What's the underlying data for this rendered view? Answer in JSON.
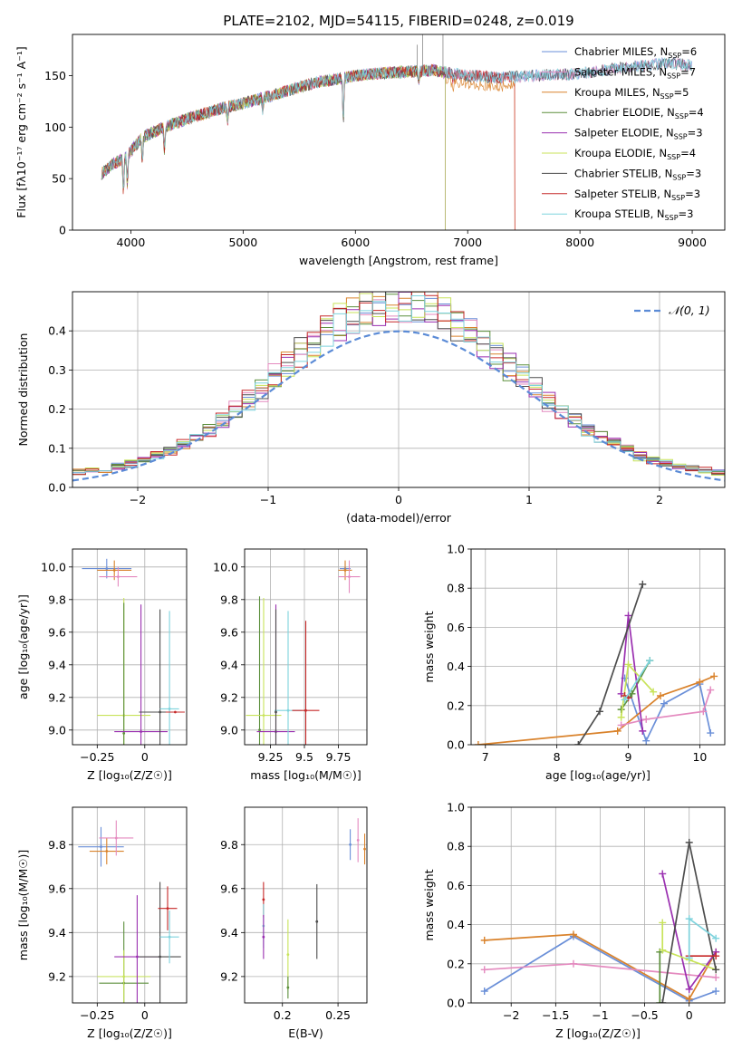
{
  "title": "PLATE=2102, MJD=54115, FIBERID=0248, z=0.019",
  "colors": {
    "Chabrier MILES": "#6a8fd8",
    "Salpeter MILES": "#e48abf",
    "Kroupa MILES": "#d9822b",
    "Chabrier ELODIE": "#5c8f3c",
    "Salpeter ELODIE": "#9a2fb0",
    "Kroupa ELODIE": "#c8e35a",
    "Chabrier STELIB": "#4d4d4d",
    "Salpeter STELIB": "#c62828",
    "Kroupa STELIB": "#7fd3dd",
    "gaussian": "#5b8bd6"
  },
  "chart_data": [
    {
      "id": "spectrum",
      "type": "line",
      "xlabel": "wavelength [Angstrom, rest frame]",
      "ylabel": "Flux [fλ10⁻¹⁷ erg cm⁻² s⁻¹ A⁻¹]",
      "xlim": [
        3480,
        9290
      ],
      "ylim": [
        0,
        190
      ],
      "xticks": [
        4000,
        5000,
        6000,
        7000,
        8000,
        9000
      ],
      "yticks": [
        0,
        50,
        100,
        150
      ],
      "legend_position": "top-right",
      "series": [
        {
          "name": "Chabrier MILES, N_SSP=6",
          "model": "Chabrier MILES"
        },
        {
          "name": "Salpeter MILES, N_SSP=7",
          "model": "Salpeter MILES"
        },
        {
          "name": "Kroupa MILES, N_SSP=5",
          "model": "Kroupa MILES"
        },
        {
          "name": "Chabrier ELODIE, N_SSP=4",
          "model": "Chabrier ELODIE"
        },
        {
          "name": "Salpeter ELODIE, N_SSP=3",
          "model": "Salpeter ELODIE"
        },
        {
          "name": "Kroupa ELODIE, N_SSP=4",
          "model": "Kroupa ELODIE"
        },
        {
          "name": "Chabrier STELIB, N_SSP=3",
          "model": "Chabrier STELIB"
        },
        {
          "name": "Salpeter STELIB, N_SSP=3",
          "model": "Salpeter STELIB"
        },
        {
          "name": "Kroupa STELIB, N_SSP=3",
          "model": "Kroupa STELIB"
        }
      ],
      "continuum": [
        [
          3740,
          55
        ],
        [
          3850,
          65
        ],
        [
          3950,
          70
        ],
        [
          4100,
          90
        ],
        [
          4300,
          100
        ],
        [
          4500,
          108
        ],
        [
          4800,
          118
        ],
        [
          5000,
          123
        ],
        [
          5300,
          132
        ],
        [
          5600,
          142
        ],
        [
          6000,
          150
        ],
        [
          6300,
          153
        ],
        [
          6700,
          155
        ],
        [
          7000,
          150
        ],
        [
          7300,
          148
        ],
        [
          7600,
          150
        ],
        [
          8000,
          152
        ],
        [
          8400,
          158
        ],
        [
          8800,
          162
        ],
        [
          9000,
          160
        ]
      ],
      "wavelength_range": [
        3740,
        9000
      ]
    },
    {
      "id": "residuals",
      "type": "line",
      "xlabel": "(data-model)/error",
      "ylabel": "Normed distribution",
      "xlim": [
        -2.5,
        2.5
      ],
      "ylim": [
        0,
        0.5
      ],
      "xticks": [
        -2,
        -1,
        0,
        1,
        2
      ],
      "yticks": [
        0.0,
        0.1,
        0.2,
        0.3,
        0.4
      ],
      "grid": true,
      "legend": "𝒩(0, 1)",
      "legend_position": "top-right",
      "gaussian": {
        "mean": 0,
        "sigma": 1
      }
    },
    {
      "id": "age-Z",
      "type": "scatter",
      "xlabel": "Z [log₁₀(Z/Z☉)]",
      "ylabel": "age  [log₁₀(age/yr)]",
      "xlim": [
        -0.38,
        0.22
      ],
      "ylim": [
        8.91,
        10.11
      ],
      "xticks": [
        -0.25,
        0.0
      ],
      "yticks": [
        9.0,
        9.2,
        9.4,
        9.6,
        9.8,
        10.0
      ],
      "grid": true,
      "points": [
        {
          "model": "Chabrier MILES",
          "x": -0.2,
          "y": 9.99,
          "xerr": 0.13,
          "yerr": 0.06
        },
        {
          "model": "Kroupa MILES",
          "x": -0.16,
          "y": 9.98,
          "xerr": 0.09,
          "yerr": 0.06
        },
        {
          "model": "Salpeter MILES",
          "x": -0.14,
          "y": 9.94,
          "xerr": 0.1,
          "yerr": 0.06
        },
        {
          "model": "Kroupa ELODIE",
          "x": -0.11,
          "y": 9.09,
          "xerr": 0.14,
          "yerr": 0.72
        },
        {
          "model": "Chabrier ELODIE",
          "x": -0.11,
          "y": 8.98,
          "xerr": 0.0,
          "yerr": 0.8
        },
        {
          "model": "Salpeter ELODIE",
          "x": -0.02,
          "y": 8.99,
          "xerr": 0.14,
          "yerr": 0.78
        },
        {
          "model": "Chabrier STELIB",
          "x": 0.08,
          "y": 9.11,
          "xerr": 0.11,
          "yerr": 0.63
        },
        {
          "model": "Kroupa STELIB",
          "x": 0.13,
          "y": 9.13,
          "xerr": 0.05,
          "yerr": 0.6
        },
        {
          "model": "Salpeter STELIB",
          "x": 0.16,
          "y": 9.11,
          "xerr": 0.05,
          "yerr": 0.0
        }
      ]
    },
    {
      "id": "age-mass",
      "type": "scatter",
      "xlabel": "mass [log₁₀(M/M☉)]",
      "ylabel": "",
      "xlim": [
        9.06,
        9.96
      ],
      "ylim": [
        8.91,
        10.11
      ],
      "xticks": [
        9.25,
        9.5,
        9.75
      ],
      "yticks": [
        9.0,
        9.2,
        9.4,
        9.6,
        9.8,
        10.0
      ],
      "grid": true,
      "points": [
        {
          "model": "Chabrier MILES",
          "x": 9.8,
          "y": 9.99,
          "xerr": 0.04,
          "yerr": 0.04
        },
        {
          "model": "Kroupa MILES",
          "x": 9.8,
          "y": 9.98,
          "xerr": 0.05,
          "yerr": 0.06
        },
        {
          "model": "Salpeter MILES",
          "x": 9.83,
          "y": 9.94,
          "xerr": 0.08,
          "yerr": 0.1
        },
        {
          "model": "Chabrier ELODIE",
          "x": 9.17,
          "y": 9.0,
          "xerr": 0.0,
          "yerr": 0.82
        },
        {
          "model": "Kroupa ELODIE",
          "x": 9.2,
          "y": 9.09,
          "xerr": 0.13,
          "yerr": 0.72
        },
        {
          "model": "Salpeter ELODIE",
          "x": 9.29,
          "y": 8.99,
          "xerr": 0.14,
          "yerr": 0.78
        },
        {
          "model": "Kroupa STELIB",
          "x": 9.38,
          "y": 9.12,
          "xerr": 0.1,
          "yerr": 0.61
        },
        {
          "model": "Chabrier STELIB",
          "x": 9.29,
          "y": 9.11,
          "xerr": 0.0,
          "yerr": 0.63
        },
        {
          "model": "Salpeter STELIB",
          "x": 9.51,
          "y": 9.12,
          "xerr": 0.1,
          "yerr": 0.55
        }
      ]
    },
    {
      "id": "weight-age",
      "type": "line",
      "xlabel": "age  [log₁₀(age/yr)]",
      "ylabel": "mass weight",
      "xlim": [
        6.8,
        10.35
      ],
      "ylim": [
        0,
        1.0
      ],
      "xticks": [
        7,
        8,
        9,
        10
      ],
      "yticks": [
        0.0,
        0.2,
        0.4,
        0.6,
        0.8,
        1.0
      ],
      "grid": true,
      "series": [
        {
          "model": "Chabrier MILES",
          "x": [
            8.95,
            9.25,
            9.5,
            10.0,
            10.15
          ],
          "y": [
            0.34,
            0.02,
            0.21,
            0.31,
            0.06
          ]
        },
        {
          "model": "Kroupa MILES",
          "x": [
            6.9,
            8.85,
            9.45,
            10.0,
            10.2
          ],
          "y": [
            0.0,
            0.07,
            0.25,
            0.32,
            0.35
          ]
        },
        {
          "model": "Salpeter MILES",
          "x": [
            8.9,
            9.25,
            10.05,
            10.15
          ],
          "y": [
            0.1,
            0.13,
            0.17,
            0.28
          ]
        },
        {
          "model": "Chabrier ELODIE",
          "x": [
            8.9,
            9.05,
            9.3
          ],
          "y": [
            0.18,
            0.26,
            0.43
          ]
        },
        {
          "model": "Salpeter ELODIE",
          "x": [
            8.9,
            9.0,
            9.2
          ],
          "y": [
            0.26,
            0.66,
            0.07
          ]
        },
        {
          "model": "Kroupa ELODIE",
          "x": [
            8.9,
            9.0,
            9.35
          ],
          "y": [
            0.14,
            0.41,
            0.27
          ]
        },
        {
          "model": "Chabrier STELIB",
          "x": [
            8.3,
            8.6,
            9.2
          ],
          "y": [
            0.0,
            0.17,
            0.82
          ]
        },
        {
          "model": "Salpeter STELIB",
          "x": [
            8.95,
            9.0
          ],
          "y": [
            0.25,
            0.24
          ]
        },
        {
          "model": "Kroupa STELIB",
          "x": [
            8.95,
            9.3
          ],
          "y": [
            0.23,
            0.43
          ]
        }
      ]
    },
    {
      "id": "mass-Z",
      "type": "scatter",
      "xlabel": "Z [log₁₀(Z/Z☉)]",
      "ylabel": "mass [log₁₀(M/M☉)]",
      "xlim": [
        -0.38,
        0.22
      ],
      "ylim": [
        9.08,
        9.97
      ],
      "xticks": [
        -0.25,
        0.0
      ],
      "yticks": [
        9.2,
        9.4,
        9.6,
        9.8
      ],
      "grid": true,
      "points": [
        {
          "model": "Chabrier MILES",
          "x": -0.23,
          "y": 9.79,
          "xerr": 0.12,
          "yerr": 0.09
        },
        {
          "model": "Kroupa MILES",
          "x": -0.2,
          "y": 9.77,
          "xerr": 0.09,
          "yerr": 0.06
        },
        {
          "model": "Salpeter MILES",
          "x": -0.15,
          "y": 9.83,
          "xerr": 0.09,
          "yerr": 0.08
        },
        {
          "model": "Chabrier ELODIE",
          "x": -0.11,
          "y": 9.17,
          "xerr": 0.13,
          "yerr": 0.28
        },
        {
          "model": "Kroupa ELODIE",
          "x": -0.11,
          "y": 9.2,
          "xerr": 0.14,
          "yerr": 0.12
        },
        {
          "model": "Salpeter ELODIE",
          "x": -0.04,
          "y": 9.29,
          "xerr": 0.12,
          "yerr": 0.28
        },
        {
          "model": "Chabrier STELIB",
          "x": 0.08,
          "y": 9.29,
          "xerr": 0.11,
          "yerr": 0.34
        },
        {
          "model": "Salpeter STELIB",
          "x": 0.12,
          "y": 9.51,
          "xerr": 0.05,
          "yerr": 0.1
        },
        {
          "model": "Kroupa STELIB",
          "x": 0.13,
          "y": 9.38,
          "xerr": 0.05,
          "yerr": 0.12
        }
      ]
    },
    {
      "id": "mass-EBV",
      "type": "scatter",
      "xlabel": "E(B-V)",
      "ylabel": "",
      "xlim": [
        0.166,
        0.276
      ],
      "ylim": [
        9.08,
        9.97
      ],
      "xticks": [
        0.2,
        0.25
      ],
      "yticks": [
        9.2,
        9.4,
        9.6,
        9.8
      ],
      "grid": true,
      "points": [
        {
          "model": "Salpeter STELIB",
          "x": 0.183,
          "y": 9.55,
          "xerr": 0.0,
          "yerr": 0.08
        },
        {
          "model": "Kroupa STELIB",
          "x": 0.183,
          "y": 9.43,
          "xerr": 0.0,
          "yerr": 0.1
        },
        {
          "model": "Salpeter ELODIE",
          "x": 0.183,
          "y": 9.38,
          "xerr": 0.0,
          "yerr": 0.1
        },
        {
          "model": "Kroupa ELODIE",
          "x": 0.205,
          "y": 9.3,
          "xerr": 0.0,
          "yerr": 0.16
        },
        {
          "model": "Chabrier ELODIE",
          "x": 0.205,
          "y": 9.15,
          "xerr": 0.0,
          "yerr": 0.05
        },
        {
          "model": "Chabrier STELIB",
          "x": 0.231,
          "y": 9.45,
          "xerr": 0.0,
          "yerr": 0.17
        },
        {
          "model": "Chabrier MILES",
          "x": 0.261,
          "y": 9.8,
          "xerr": 0.0,
          "yerr": 0.07
        },
        {
          "model": "Salpeter MILES",
          "x": 0.268,
          "y": 9.82,
          "xerr": 0.0,
          "yerr": 0.1
        },
        {
          "model": "Kroupa MILES",
          "x": 0.274,
          "y": 9.78,
          "xerr": 0.0,
          "yerr": 0.07
        }
      ]
    },
    {
      "id": "weight-Z",
      "type": "line",
      "xlabel": "Z [log₁₀(Z/Z☉)]",
      "ylabel": "mass weight",
      "xlim": [
        -2.45,
        0.4
      ],
      "ylim": [
        0,
        1.0
      ],
      "xticks": [
        -2.0,
        -1.5,
        -1.0,
        -0.5,
        0.0
      ],
      "yticks": [
        0.0,
        0.2,
        0.4,
        0.6,
        0.8,
        1.0
      ],
      "grid": true,
      "series": [
        {
          "model": "Chabrier MILES",
          "x": [
            -2.3,
            -1.3,
            0.0,
            0.3
          ],
          "y": [
            0.06,
            0.34,
            0.01,
            0.06
          ]
        },
        {
          "model": "Kroupa MILES",
          "x": [
            -2.3,
            -1.3,
            0.0,
            0.3
          ],
          "y": [
            0.32,
            0.35,
            0.02,
            0.26
          ]
        },
        {
          "model": "Salpeter MILES",
          "x": [
            -2.3,
            -1.3,
            0.3
          ],
          "y": [
            0.17,
            0.2,
            0.13
          ]
        },
        {
          "model": "Chabrier ELODIE",
          "x": [
            -0.33,
            -0.33
          ],
          "y": [
            0.0,
            0.26
          ]
        },
        {
          "model": "Salpeter ELODIE",
          "x": [
            -0.3,
            0.0,
            0.3
          ],
          "y": [
            0.66,
            0.07,
            0.26
          ]
        },
        {
          "model": "Kroupa ELODIE",
          "x": [
            -0.3,
            -0.3,
            0.0,
            0.3
          ],
          "y": [
            0.41,
            0.27,
            0.22,
            0.17
          ]
        },
        {
          "model": "Chabrier STELIB",
          "x": [
            -0.3,
            0.0,
            0.3
          ],
          "y": [
            0.0,
            0.82,
            0.17
          ]
        },
        {
          "model": "Salpeter STELIB",
          "x": [
            0.0,
            0.3
          ],
          "y": [
            0.24,
            0.24
          ]
        },
        {
          "model": "Kroupa STELIB",
          "x": [
            0.0,
            0.0,
            0.3
          ],
          "y": [
            0.23,
            0.43,
            0.33
          ]
        }
      ]
    }
  ]
}
